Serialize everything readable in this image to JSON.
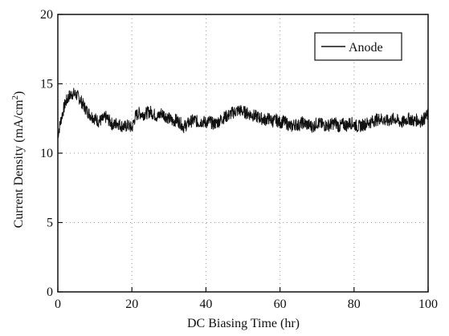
{
  "chart_data": {
    "type": "line",
    "xlabel": "DC Biasing Time (hr)",
    "ylabel": "Current Density (mA/cm",
    "ylabel_sup": "2",
    "ylabel_end": ")",
    "xlim": [
      0,
      100
    ],
    "ylim": [
      0,
      20
    ],
    "xticks": [
      0,
      20,
      40,
      60,
      80,
      100
    ],
    "yticks": [
      0,
      5,
      10,
      15,
      20
    ],
    "grid": "dotted",
    "legend_position": "top-right",
    "series": [
      {
        "name": "Anode",
        "color": "#111111",
        "x": [
          0,
          1,
          2,
          3,
          4,
          5,
          6,
          7,
          8,
          9,
          10,
          11,
          12,
          13,
          14,
          15,
          16,
          17,
          18,
          19,
          20,
          21,
          22,
          23,
          24,
          25,
          26,
          27,
          28,
          29,
          30,
          31,
          32,
          33,
          34,
          35,
          36,
          37,
          38,
          39,
          40,
          41,
          42,
          43,
          44,
          45,
          46,
          47,
          48,
          49,
          50,
          51,
          52,
          53,
          54,
          55,
          56,
          57,
          58,
          59,
          60,
          61,
          62,
          63,
          64,
          65,
          66,
          67,
          68,
          69,
          70,
          71,
          72,
          73,
          74,
          75,
          76,
          77,
          78,
          79,
          80,
          81,
          82,
          83,
          84,
          85,
          86,
          87,
          88,
          89,
          90,
          91,
          92,
          93,
          94,
          95,
          96,
          97,
          98,
          99,
          100
        ],
        "values": [
          11.3,
          12.6,
          13.6,
          14.1,
          14.3,
          14.2,
          13.9,
          13.4,
          13.0,
          12.7,
          12.5,
          12.3,
          12.4,
          12.6,
          12.3,
          12.0,
          12.2,
          12.0,
          11.9,
          12.0,
          11.8,
          12.7,
          12.9,
          12.8,
          12.9,
          13.0,
          12.8,
          12.6,
          12.9,
          12.7,
          12.5,
          12.3,
          12.4,
          12.2,
          11.9,
          12.1,
          12.3,
          12.4,
          12.2,
          12.3,
          12.2,
          12.3,
          12.1,
          12.2,
          12.4,
          12.6,
          12.7,
          12.9,
          13.0,
          13.1,
          13.0,
          12.9,
          12.8,
          12.7,
          12.6,
          12.5,
          12.4,
          12.5,
          12.3,
          12.4,
          12.2,
          12.3,
          12.1,
          11.9,
          12.1,
          12.0,
          12.2,
          12.1,
          12.0,
          11.9,
          12.2,
          12.1,
          12.0,
          12.0,
          12.1,
          12.2,
          11.9,
          12.1,
          12.0,
          12.2,
          12.1,
          11.9,
          12.0,
          12.1,
          12.2,
          12.3,
          12.4,
          12.5,
          12.4,
          12.3,
          12.4,
          12.5,
          12.3,
          12.2,
          12.4,
          12.5,
          12.3,
          12.4,
          12.3,
          12.5,
          12.8
        ]
      }
    ]
  }
}
